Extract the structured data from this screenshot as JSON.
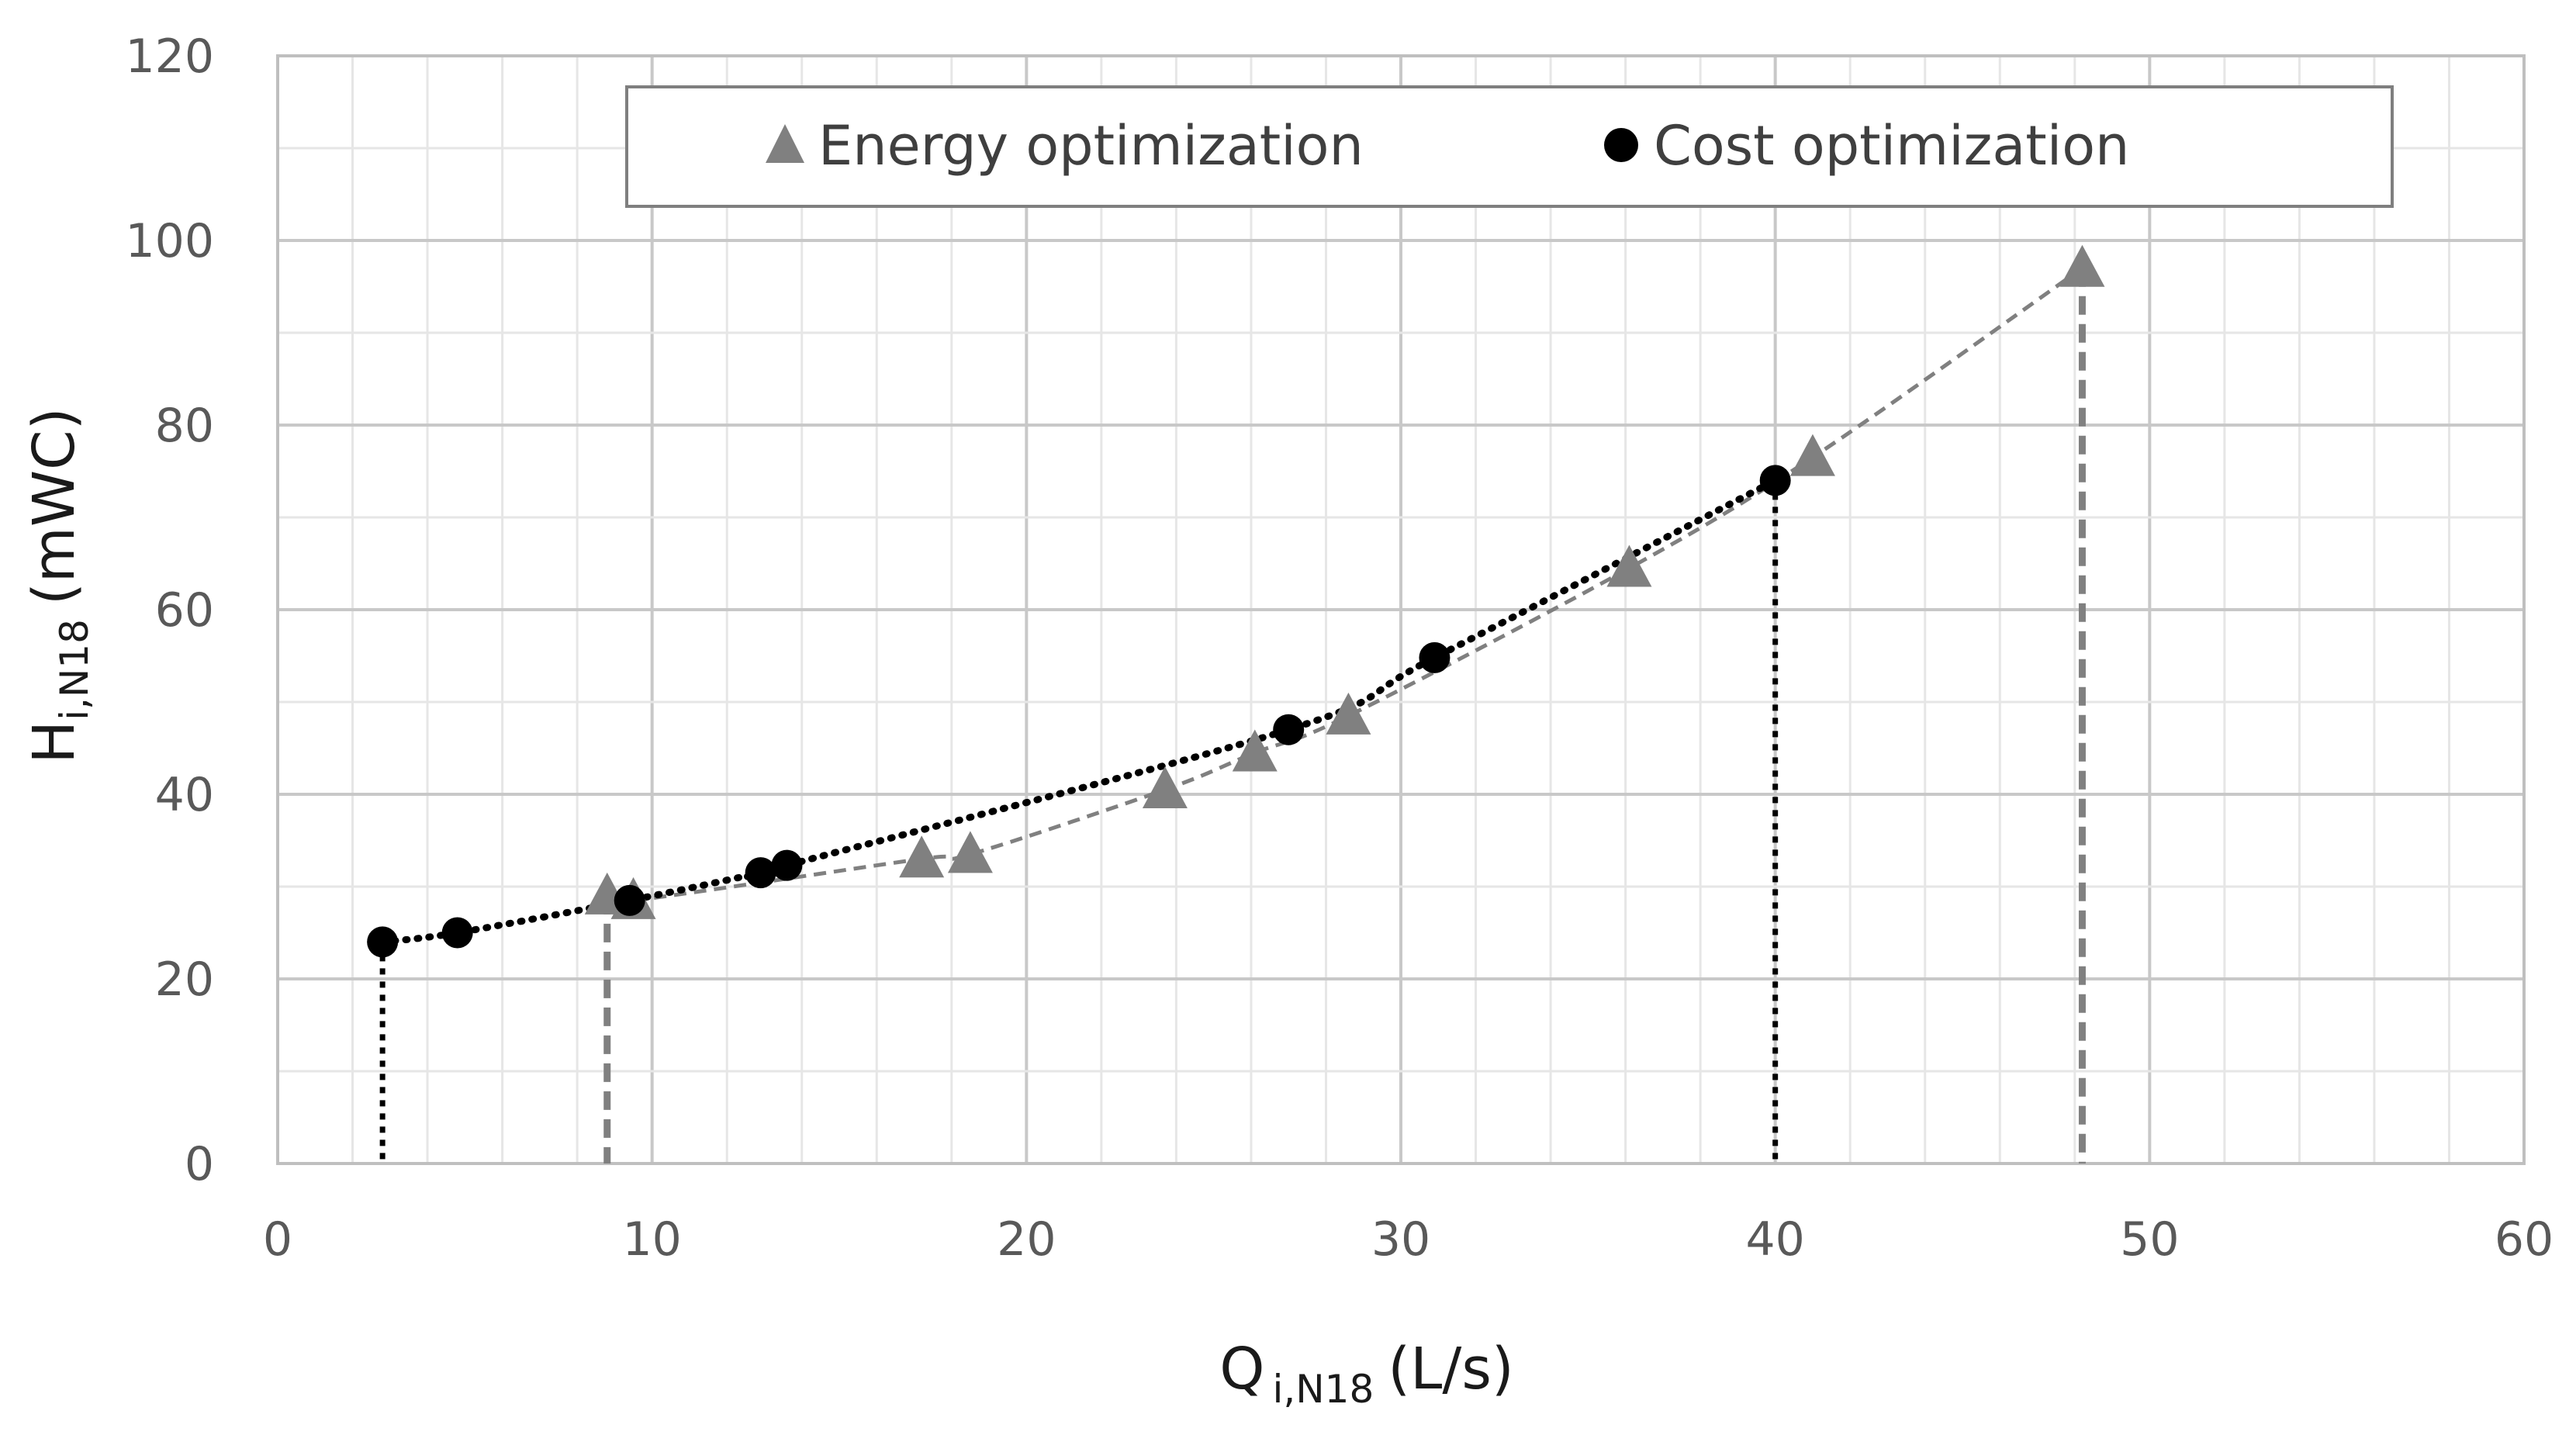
{
  "chart_data": {
    "type": "scatter",
    "x_axis": {
      "label_main": "Q",
      "label_sub": "i,N18",
      "label_unit": "(L/s)",
      "range": [
        0,
        60
      ],
      "major_ticks": [
        0,
        10,
        20,
        30,
        40,
        50,
        60
      ],
      "minor_step": 2
    },
    "y_axis": {
      "label_main": "H",
      "label_sub": "i,N18",
      "label_unit": "(mWC)",
      "range": [
        0,
        120
      ],
      "major_ticks": [
        0,
        20,
        40,
        60,
        80,
        100,
        120
      ],
      "minor_step": 10
    },
    "grid": true,
    "legend": {
      "position": "top",
      "boxed": true
    },
    "series": [
      {
        "name": "Energy optimization",
        "marker": "triangle",
        "color": "#808080",
        "line_style": "dashed",
        "points": [
          [
            8.8,
            29
          ],
          [
            9.5,
            28.5
          ],
          [
            17.2,
            33
          ],
          [
            18.5,
            33.5
          ],
          [
            23.7,
            40.5
          ],
          [
            26.1,
            44.5
          ],
          [
            28.6,
            48.5
          ],
          [
            36.1,
            64.5
          ],
          [
            41,
            76.5
          ],
          [
            48.2,
            97
          ]
        ],
        "drop_lines_at_x": [
          8.8,
          48.2
        ]
      },
      {
        "name": "Cost optimization",
        "marker": "circle",
        "color": "#000000",
        "line_style": "dotted",
        "points": [
          [
            2.8,
            24
          ],
          [
            4.8,
            25
          ],
          [
            9.4,
            28.5
          ],
          [
            12.9,
            31.5
          ],
          [
            13.6,
            32.3
          ],
          [
            27,
            47
          ],
          [
            30.9,
            54.8
          ],
          [
            40,
            74
          ]
        ],
        "drop_lines_at_x": [
          2.8,
          40
        ]
      }
    ]
  }
}
